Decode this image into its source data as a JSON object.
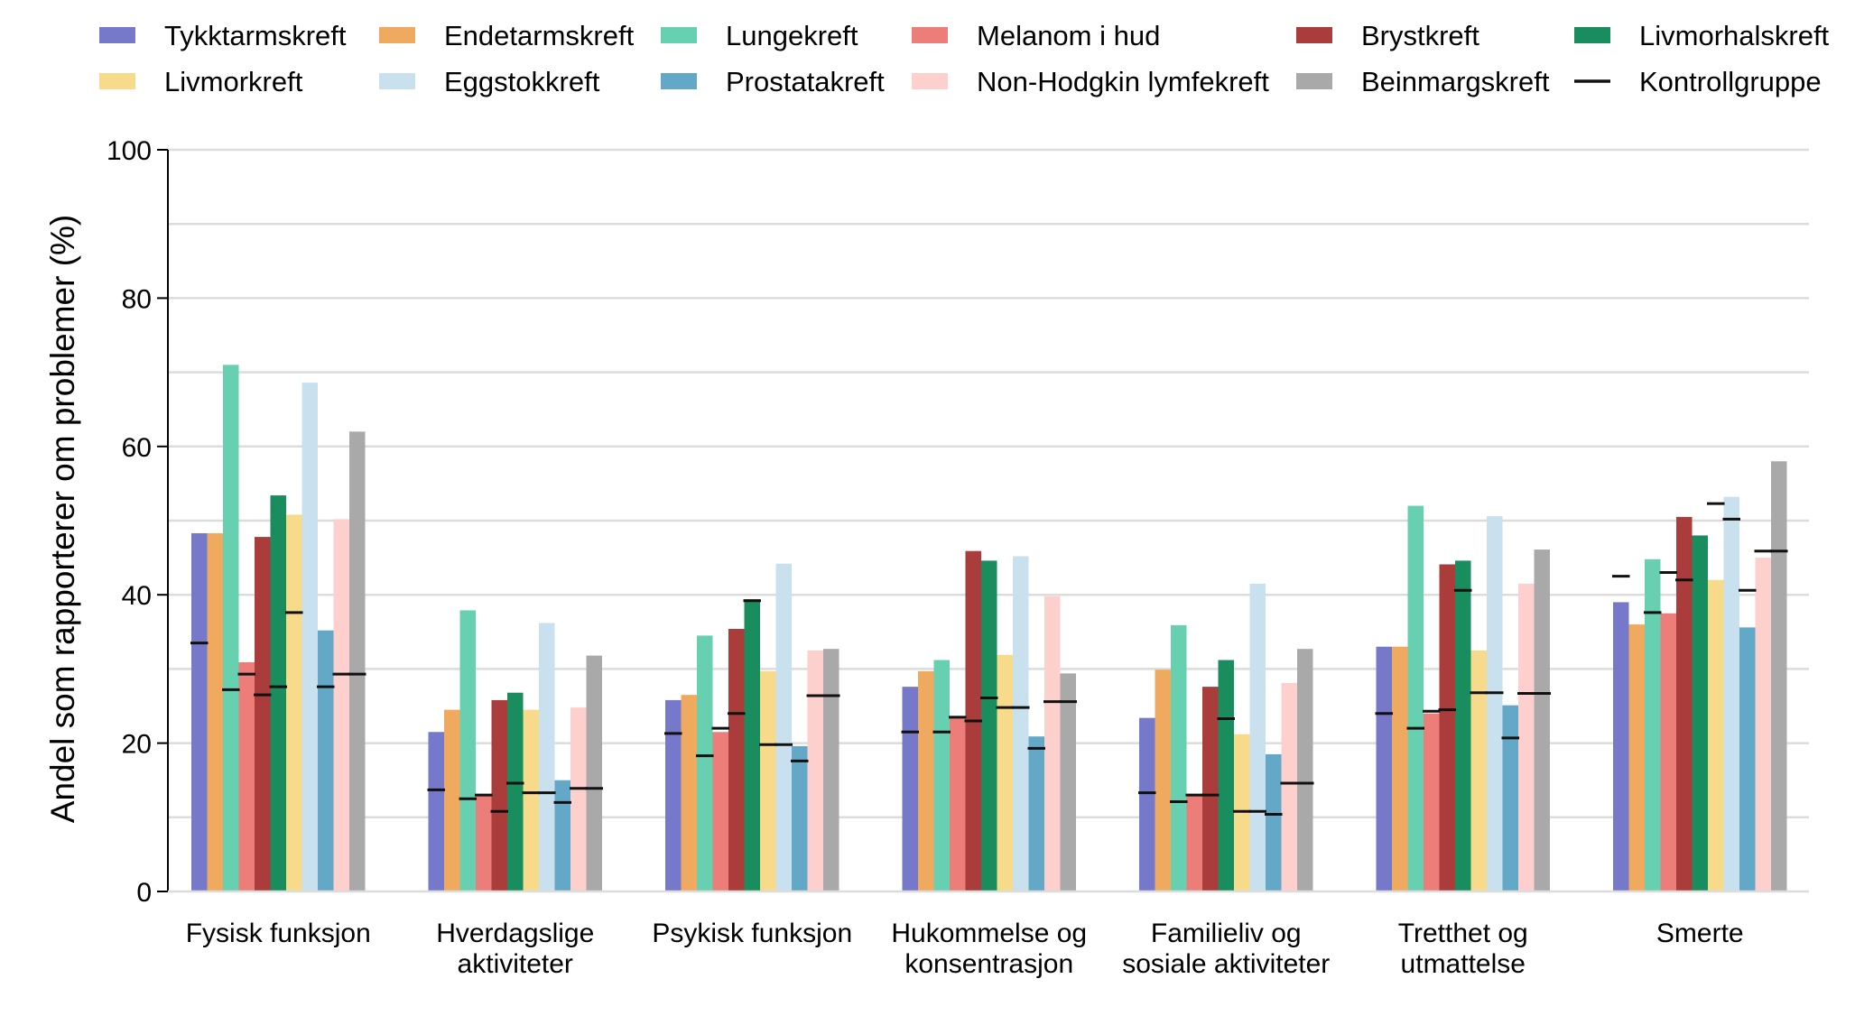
{
  "chart_data": {
    "type": "bar",
    "title": "",
    "xlabel": "",
    "ylabel": "Andel som rapporterer om problemer (%)",
    "ylim": [
      0,
      100
    ],
    "yticks": [
      0,
      20,
      40,
      60,
      80,
      100
    ],
    "grid": true,
    "legend_position": "top",
    "categories": [
      [
        "Fysisk funksjon"
      ],
      [
        "Hverdagslige",
        "aktiviteter"
      ],
      [
        "Psykisk funksjon"
      ],
      [
        "Hukommelse og",
        "konsentrasjon"
      ],
      [
        "Familieliv og",
        "sosiale aktiviteter"
      ],
      [
        "Tretthet og",
        "utmattelse"
      ],
      [
        "Smerte"
      ]
    ],
    "series": [
      {
        "name": "Tykktarmskreft",
        "color": "#7678c9",
        "values": [
          48.3,
          21.5,
          25.8,
          27.6,
          23.4,
          33.0,
          39.0
        ],
        "control": [
          33.5,
          13.7,
          21.3,
          21.5,
          13.3,
          24.0,
          42.5
        ]
      },
      {
        "name": "Endetarmskreft",
        "color": "#f0aa60",
        "values": [
          48.3,
          24.5,
          26.5,
          29.7,
          29.9,
          33.0,
          36.0
        ],
        "control": [
          null,
          null,
          null,
          null,
          null,
          null,
          null
        ]
      },
      {
        "name": "Lungekreft",
        "color": "#66d0b0",
        "values": [
          71.0,
          37.9,
          34.5,
          31.2,
          35.9,
          52.0,
          44.8
        ],
        "control": [
          27.2,
          12.5,
          18.3,
          21.5,
          12.1,
          22.0,
          37.6
        ]
      },
      {
        "name": "Melanom i hud",
        "color": "#ec7d78",
        "values": [
          30.9,
          13.0,
          21.5,
          23.5,
          13.0,
          24.0,
          37.5
        ],
        "control": [
          29.3,
          13.0,
          22.0,
          23.5,
          13.0,
          24.3,
          43.0
        ]
      },
      {
        "name": "Brystkreft",
        "color": "#aa3c3c",
        "values": [
          47.8,
          25.8,
          35.4,
          45.9,
          27.6,
          44.1,
          50.5
        ],
        "control": [
          26.5,
          10.8,
          24.0,
          23.0,
          13.0,
          24.5,
          42.0
        ]
      },
      {
        "name": "Livmorhalskreft",
        "color": "#1a8d5f",
        "values": [
          53.4,
          26.8,
          39.4,
          44.6,
          31.2,
          44.6,
          48.0
        ],
        "control": [
          27.6,
          14.6,
          39.2,
          26.1,
          23.3,
          40.6,
          null
        ]
      },
      {
        "name": "Livmorkreft",
        "color": "#f7da8a",
        "values": [
          50.8,
          24.5,
          29.7,
          31.9,
          21.2,
          32.5,
          42.0
        ],
        "control": [
          37.6,
          13.3,
          19.8,
          24.8,
          10.8,
          26.8,
          52.3
        ]
      },
      {
        "name": "Eggstokkreft",
        "color": "#c9e0ee",
        "values": [
          68.6,
          36.2,
          44.2,
          45.2,
          41.5,
          50.6,
          53.2
        ],
        "control": [
          null,
          13.3,
          19.8,
          24.8,
          10.8,
          26.8,
          50.2
        ]
      },
      {
        "name": "Prostatakreft",
        "color": "#64a8c8",
        "values": [
          35.2,
          15.0,
          19.6,
          20.9,
          18.5,
          25.1,
          35.6
        ],
        "control": [
          27.6,
          12.0,
          17.6,
          19.3,
          10.4,
          20.7,
          40.6
        ]
      },
      {
        "name": "Non-Hodgkin lymfekreft",
        "color": "#fdd0ce",
        "values": [
          50.2,
          24.8,
          32.5,
          39.8,
          28.1,
          41.5,
          45.0
        ],
        "control": [
          29.3,
          13.9,
          26.4,
          25.6,
          14.6,
          26.7,
          45.9
        ]
      },
      {
        "name": "Beinmargskreft",
        "color": "#a9a9a9",
        "values": [
          62.0,
          31.8,
          32.7,
          29.4,
          32.7,
          46.1,
          58.0
        ],
        "control": [
          29.3,
          13.9,
          26.4,
          25.6,
          14.6,
          26.7,
          45.9
        ]
      }
    ],
    "control_legend_label": "Kontrollgruppe",
    "legend_layout": [
      [
        "Tykktarmskreft",
        "Endetarmskreft",
        "Lungekreft",
        "Melanom i hud",
        "Brystkreft",
        "Livmorhalskreft"
      ],
      [
        "Livmorkreft",
        "Eggstokkreft",
        "Prostatakreft",
        "Non-Hodgkin lymfekreft",
        "Beinmargskreft",
        "Kontrollgruppe"
      ]
    ]
  }
}
